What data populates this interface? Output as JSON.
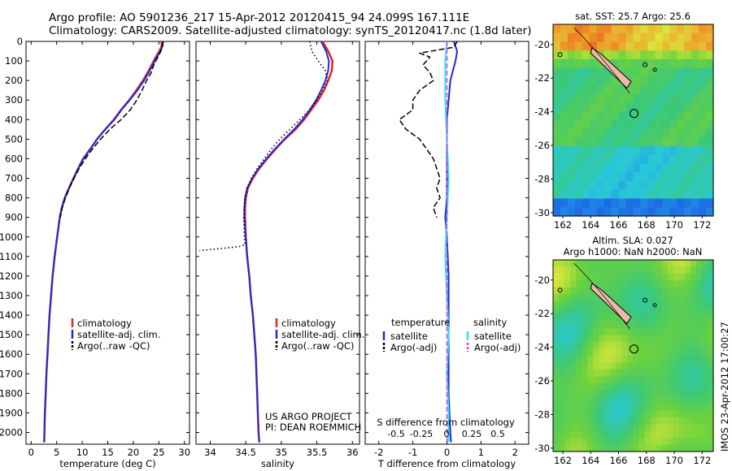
{
  "header": {
    "line1": "Argo profile: AO 5901236_217 15-Apr-2012 20120415_94 24.099S 167.111E",
    "line2": "Climatology: CARS2009. Satellite-adjusted climatology: synTS_20120417.nc (1.8d later)"
  },
  "side_text": "IMOS 23-Apr-2012 17:00:27",
  "colors": {
    "climatology": "#e8202a",
    "satellite": "#1f2ad6",
    "argo": "#000000",
    "sal_satellite": "#22e6f2",
    "sal_argo": "#e040e0"
  },
  "depth_ticks": [
    "0",
    "100",
    "200",
    "300",
    "400",
    "500",
    "600",
    "700",
    "800",
    "900",
    "1000",
    "1100",
    "1200",
    "1300",
    "1400",
    "1500",
    "1600",
    "1700",
    "1800",
    "1900",
    "2000"
  ],
  "chart_data": [
    {
      "type": "line",
      "panel": "temperature",
      "xlabel": "temperature (deg C)",
      "ylabel": "",
      "xlim": [
        -1,
        31
      ],
      "ylim": [
        2060,
        0
      ],
      "x_ticks": [
        0,
        5,
        10,
        15,
        20,
        25,
        30
      ],
      "legend": [
        "climatology",
        "satellite-adj. clim.",
        "Argo(..raw -QC)"
      ],
      "series": [
        {
          "name": "climatology",
          "style": "climatology",
          "points": [
            [
              25.5,
              0
            ],
            [
              25.6,
              20
            ],
            [
              25.1,
              50
            ],
            [
              24.4,
              80
            ],
            [
              23.6,
              120
            ],
            [
              22.8,
              160
            ],
            [
              21.9,
              200
            ],
            [
              20.6,
              250
            ],
            [
              19.2,
              300
            ],
            [
              17.6,
              350
            ],
            [
              16.2,
              400
            ],
            [
              14.5,
              450
            ],
            [
              12.9,
              500
            ],
            [
              11.6,
              550
            ],
            [
              10.2,
              600
            ],
            [
              9.2,
              650
            ],
            [
              8.3,
              700
            ],
            [
              7.4,
              750
            ],
            [
              6.6,
              800
            ],
            [
              6.0,
              850
            ],
            [
              5.6,
              900
            ],
            [
              5.1,
              1000
            ],
            [
              4.6,
              1100
            ],
            [
              4.2,
              1200
            ],
            [
              3.9,
              1300
            ],
            [
              3.6,
              1400
            ],
            [
              3.4,
              1500
            ],
            [
              3.2,
              1600
            ],
            [
              3.0,
              1700
            ],
            [
              2.85,
              1800
            ],
            [
              2.7,
              1900
            ],
            [
              2.6,
              2000
            ],
            [
              2.55,
              2050
            ]
          ]
        },
        {
          "name": "satellite-adj. clim.",
          "style": "satellite",
          "points": [
            [
              25.7,
              0
            ],
            [
              25.8,
              20
            ],
            [
              25.3,
              50
            ],
            [
              24.6,
              80
            ],
            [
              23.8,
              120
            ],
            [
              23.0,
              160
            ],
            [
              22.1,
              200
            ],
            [
              20.8,
              250
            ],
            [
              19.3,
              300
            ],
            [
              17.7,
              350
            ],
            [
              16.3,
              400
            ],
            [
              14.5,
              450
            ],
            [
              12.9,
              500
            ],
            [
              11.6,
              550
            ],
            [
              10.2,
              600
            ],
            [
              9.2,
              650
            ],
            [
              8.3,
              700
            ],
            [
              7.4,
              750
            ],
            [
              6.6,
              800
            ],
            [
              6.0,
              850
            ],
            [
              5.6,
              900
            ],
            [
              5.1,
              1000
            ],
            [
              4.6,
              1100
            ],
            [
              4.2,
              1200
            ],
            [
              3.9,
              1300
            ],
            [
              3.6,
              1400
            ],
            [
              3.4,
              1500
            ],
            [
              3.2,
              1600
            ],
            [
              3.0,
              1700
            ],
            [
              2.85,
              1800
            ],
            [
              2.7,
              1900
            ],
            [
              2.6,
              2000
            ],
            [
              2.55,
              2050
            ]
          ]
        },
        {
          "name": "Argo(..raw -QC)",
          "style": "argo",
          "points": [
            [
              25.9,
              0
            ],
            [
              25.6,
              20
            ],
            [
              25.4,
              50
            ],
            [
              24.8,
              80
            ],
            [
              24.0,
              120
            ],
            [
              23.5,
              160
            ],
            [
              22.6,
              200
            ],
            [
              21.7,
              250
            ],
            [
              20.7,
              300
            ],
            [
              19.4,
              350
            ],
            [
              17.6,
              400
            ],
            [
              15.4,
              450
            ],
            [
              13.6,
              500
            ],
            [
              12.0,
              550
            ],
            [
              10.6,
              600
            ],
            [
              9.4,
              650
            ],
            [
              8.4,
              700
            ],
            [
              7.5,
              750
            ],
            [
              6.7,
              800
            ],
            [
              6.1,
              850
            ],
            [
              5.7,
              900
            ]
          ]
        }
      ]
    },
    {
      "type": "line",
      "panel": "salinity",
      "xlabel": "salinity",
      "ylabel": "",
      "xlim": [
        33.8,
        36.1
      ],
      "ylim": [
        2060,
        0
      ],
      "x_ticks": [
        34,
        34.5,
        35,
        35.5,
        36
      ],
      "legend": [
        "climatology",
        "satellite-adj. clim.",
        "Argo(..raw -QC)"
      ],
      "annotations": [
        "US ARGO PROJECT",
        "PI: DEAN ROEMMICH"
      ],
      "series": [
        {
          "name": "climatology",
          "style": "climatology",
          "points": [
            [
              35.58,
              0
            ],
            [
              35.66,
              50
            ],
            [
              35.72,
              100
            ],
            [
              35.71,
              150
            ],
            [
              35.66,
              200
            ],
            [
              35.6,
              250
            ],
            [
              35.52,
              300
            ],
            [
              35.42,
              350
            ],
            [
              35.32,
              400
            ],
            [
              35.2,
              450
            ],
            [
              35.05,
              500
            ],
            [
              34.92,
              550
            ],
            [
              34.8,
              600
            ],
            [
              34.69,
              650
            ],
            [
              34.6,
              700
            ],
            [
              34.53,
              750
            ],
            [
              34.5,
              800
            ],
            [
              34.49,
              850
            ],
            [
              34.49,
              900
            ],
            [
              34.5,
              1000
            ],
            [
              34.52,
              1100
            ],
            [
              34.55,
              1200
            ],
            [
              34.57,
              1300
            ],
            [
              34.6,
              1400
            ],
            [
              34.62,
              1500
            ],
            [
              34.64,
              1600
            ],
            [
              34.65,
              1700
            ],
            [
              34.66,
              1800
            ],
            [
              34.67,
              1900
            ],
            [
              34.68,
              2000
            ],
            [
              34.69,
              2050
            ]
          ]
        },
        {
          "name": "satellite-adj. clim.",
          "style": "satellite",
          "points": [
            [
              35.56,
              0
            ],
            [
              35.63,
              50
            ],
            [
              35.67,
              100
            ],
            [
              35.66,
              150
            ],
            [
              35.62,
              200
            ],
            [
              35.56,
              250
            ],
            [
              35.49,
              300
            ],
            [
              35.4,
              350
            ],
            [
              35.3,
              400
            ],
            [
              35.18,
              450
            ],
            [
              35.04,
              500
            ],
            [
              34.91,
              550
            ],
            [
              34.79,
              600
            ],
            [
              34.68,
              650
            ],
            [
              34.59,
              700
            ],
            [
              34.52,
              750
            ],
            [
              34.49,
              800
            ],
            [
              34.48,
              850
            ],
            [
              34.48,
              900
            ],
            [
              34.5,
              1000
            ],
            [
              34.52,
              1100
            ],
            [
              34.55,
              1200
            ],
            [
              34.57,
              1300
            ],
            [
              34.6,
              1400
            ],
            [
              34.62,
              1500
            ],
            [
              34.64,
              1600
            ],
            [
              34.65,
              1700
            ],
            [
              34.66,
              1800
            ],
            [
              34.67,
              1900
            ],
            [
              34.68,
              2000
            ],
            [
              34.69,
              2050
            ]
          ]
        },
        {
          "name": "Argo(..raw -QC)",
          "style": "argo",
          "points": [
            [
              35.4,
              0
            ],
            [
              35.43,
              50
            ],
            [
              35.52,
              100
            ],
            [
              35.62,
              150
            ],
            [
              35.65,
              200
            ],
            [
              35.58,
              250
            ],
            [
              35.5,
              300
            ],
            [
              35.4,
              350
            ],
            [
              35.26,
              400
            ],
            [
              35.12,
              450
            ],
            [
              34.98,
              500
            ],
            [
              34.86,
              550
            ],
            [
              34.76,
              600
            ],
            [
              34.66,
              650
            ],
            [
              34.58,
              700
            ],
            [
              34.52,
              750
            ],
            [
              34.49,
              800
            ],
            [
              34.48,
              850
            ],
            [
              34.47,
              900
            ],
            [
              34.48,
              1000
            ],
            [
              34.49,
              1040
            ],
            [
              34.4,
              1050
            ],
            [
              33.85,
              1070
            ]
          ]
        }
      ]
    },
    {
      "type": "line",
      "panel": "difference",
      "xlabel": "T difference from climatology",
      "xlabel_top": "S difference from climatology",
      "xlim": [
        -2.4,
        2.4
      ],
      "ylim": [
        2060,
        0
      ],
      "x_ticks": [
        -2,
        -1,
        0,
        1,
        2
      ],
      "s_ticks": [
        "-0.5",
        "-0.25",
        "0",
        "0.25",
        "0.5"
      ],
      "legend_headers": [
        "temperature",
        "salinity"
      ],
      "legend": [
        "satellite",
        "Argo(-adj)",
        "satellite",
        "Argo(-adj)"
      ],
      "series": [
        {
          "name": "satellite",
          "style": "satellite",
          "points": [
            [
              0.2,
              0
            ],
            [
              0.3,
              50
            ],
            [
              0.25,
              100
            ],
            [
              0.1,
              200
            ],
            [
              0.05,
              300
            ],
            [
              0,
              400
            ],
            [
              0,
              600
            ],
            [
              0,
              800
            ],
            [
              -0.05,
              900
            ],
            [
              0,
              1000
            ],
            [
              0.05,
              1200
            ],
            [
              0.05,
              1500
            ],
            [
              0.05,
              1800
            ],
            [
              0.1,
              2000
            ],
            [
              0.12,
              2050
            ]
          ]
        },
        {
          "name": "Argo(-adj)",
          "style": "argo",
          "points": [
            [
              0.3,
              0
            ],
            [
              0.2,
              30
            ],
            [
              -0.8,
              60
            ],
            [
              -0.5,
              80
            ],
            [
              -0.7,
              120
            ],
            [
              -0.5,
              160
            ],
            [
              -0.4,
              200
            ],
            [
              -0.8,
              250
            ],
            [
              -1.0,
              300
            ],
            [
              -1.0,
              350
            ],
            [
              -1.4,
              400
            ],
            [
              -1.2,
              450
            ],
            [
              -0.8,
              500
            ],
            [
              -0.6,
              550
            ],
            [
              -0.4,
              600
            ],
            [
              -0.3,
              650
            ],
            [
              -0.2,
              700
            ],
            [
              -0.3,
              750
            ],
            [
              -0.2,
              800
            ],
            [
              -0.4,
              850
            ],
            [
              -0.3,
              900
            ]
          ]
        },
        {
          "name": "salinity satellite",
          "style": "sal_satellite",
          "points": [
            [
              0,
              0
            ],
            [
              -0.05,
              100
            ],
            [
              -0.05,
              300
            ],
            [
              0,
              500
            ],
            [
              0.05,
              700
            ],
            [
              0,
              900
            ],
            [
              -0.05,
              1100
            ],
            [
              0,
              1300
            ],
            [
              0.05,
              1500
            ],
            [
              0,
              1700
            ],
            [
              0.05,
              1900
            ],
            [
              0.05,
              2050
            ]
          ]
        },
        {
          "name": "salinity Argo(-adj)",
          "style": "sal_argo",
          "points": [
            [
              0,
              0
            ],
            [
              0,
              2050
            ]
          ]
        }
      ]
    }
  ],
  "maps": [
    {
      "title": "sat. SST: 25.7 Argo: 25.6",
      "lat_ticks": [
        "-20",
        "-22",
        "-24",
        "-26",
        "-28",
        "-30"
      ],
      "lon_ticks": [
        "162",
        "164",
        "166",
        "168",
        "170",
        "172"
      ]
    },
    {
      "title": "Altim. SLA: 0.027",
      "subtitle": "Argo h1000: NaN h2000: NaN",
      "lat_ticks": [
        "-20",
        "-22",
        "-24",
        "-26",
        "-28",
        "-30"
      ],
      "lon_ticks": [
        "162",
        "164",
        "166",
        "168",
        "170",
        "172"
      ]
    }
  ]
}
